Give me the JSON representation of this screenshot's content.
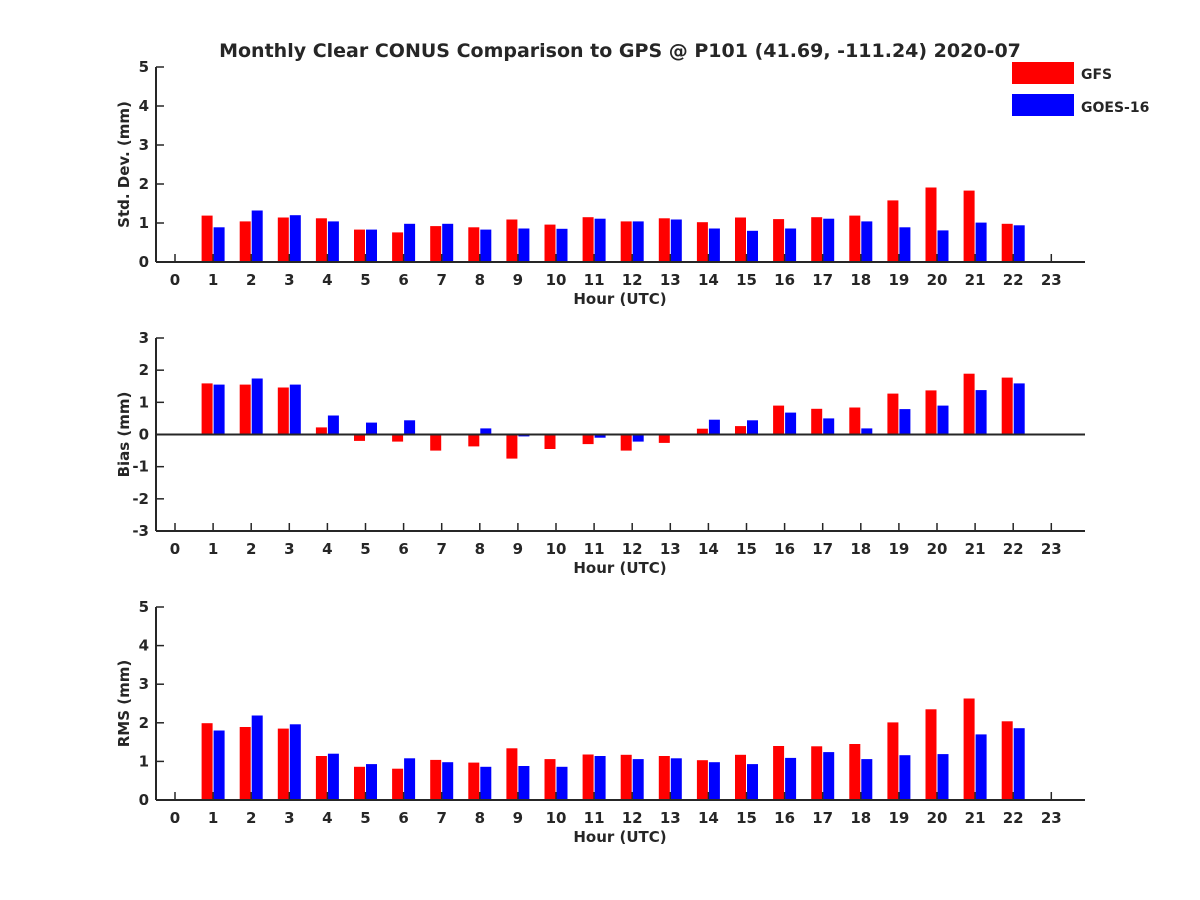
{
  "title": "Monthly Clear CONUS Comparison to GPS @ P101 (41.69, -111.24) 2020-07",
  "legend": [
    {
      "name": "GFS",
      "color": "#ff0000"
    },
    {
      "name": "GOES-16",
      "color": "#0000ff"
    }
  ],
  "chart_data": [
    {
      "type": "bar",
      "xlabel": "Hour (UTC)",
      "ylabel": "Std. Dev. (mm)",
      "ylim": [
        0,
        5
      ],
      "yticks": [
        "0",
        "1",
        "2",
        "3",
        "4",
        "5"
      ],
      "x": [
        0,
        1,
        2,
        3,
        4,
        5,
        6,
        7,
        8,
        9,
        10,
        11,
        12,
        13,
        14,
        15,
        16,
        17,
        18,
        19,
        20,
        21,
        22,
        23
      ],
      "xticks": [
        "0",
        "1",
        "2",
        "3",
        "4",
        "5",
        "6",
        "7",
        "8",
        "9",
        "10",
        "11",
        "12",
        "13",
        "14",
        "15",
        "16",
        "17",
        "18",
        "19",
        "20",
        "21",
        "22",
        "23"
      ],
      "series": [
        {
          "name": "GFS",
          "values": [
            null,
            1.19,
            1.04,
            1.14,
            1.12,
            0.83,
            0.76,
            0.92,
            0.89,
            1.09,
            0.96,
            1.15,
            1.04,
            1.12,
            1.02,
            1.14,
            1.1,
            1.15,
            1.19,
            1.58,
            1.91,
            1.83,
            0.98,
            null
          ]
        },
        {
          "name": "GOES-16",
          "values": [
            null,
            0.89,
            1.32,
            1.2,
            1.04,
            0.83,
            0.98,
            0.98,
            0.83,
            0.86,
            0.85,
            1.11,
            1.04,
            1.09,
            0.86,
            0.8,
            0.86,
            1.11,
            1.04,
            0.89,
            0.81,
            1.01,
            0.94,
            null
          ]
        }
      ]
    },
    {
      "type": "bar",
      "xlabel": "Hour (UTC)",
      "ylabel": "Bias (mm)",
      "ylim": [
        -3,
        3
      ],
      "yticks": [
        "-3",
        "-2",
        "-1",
        "0",
        "1",
        "2",
        "3"
      ],
      "x": [
        0,
        1,
        2,
        3,
        4,
        5,
        6,
        7,
        8,
        9,
        10,
        11,
        12,
        13,
        14,
        15,
        16,
        17,
        18,
        19,
        20,
        21,
        22,
        23
      ],
      "xticks": [
        "0",
        "1",
        "2",
        "3",
        "4",
        "5",
        "6",
        "7",
        "8",
        "9",
        "10",
        "11",
        "12",
        "13",
        "14",
        "15",
        "16",
        "17",
        "18",
        "19",
        "20",
        "21",
        "22",
        "23"
      ],
      "series": [
        {
          "name": "GFS",
          "values": [
            null,
            1.59,
            1.55,
            1.46,
            0.22,
            -0.2,
            -0.22,
            -0.5,
            -0.37,
            -0.75,
            -0.45,
            -0.3,
            -0.5,
            -0.26,
            0.18,
            0.26,
            0.9,
            0.8,
            0.84,
            1.27,
            1.37,
            1.89,
            1.77,
            null
          ]
        },
        {
          "name": "GOES-16",
          "values": [
            null,
            1.55,
            1.74,
            1.55,
            0.59,
            0.37,
            0.44,
            0.03,
            0.19,
            -0.06,
            0.0,
            -0.1,
            -0.22,
            0.0,
            0.46,
            0.44,
            0.68,
            0.5,
            0.19,
            0.79,
            0.9,
            1.38,
            1.59,
            null
          ]
        }
      ]
    },
    {
      "type": "bar",
      "xlabel": "Hour (UTC)",
      "ylabel": "RMS (mm)",
      "ylim": [
        0,
        5
      ],
      "yticks": [
        "0",
        "1",
        "2",
        "3",
        "4",
        "5"
      ],
      "x": [
        0,
        1,
        2,
        3,
        4,
        5,
        6,
        7,
        8,
        9,
        10,
        11,
        12,
        13,
        14,
        15,
        16,
        17,
        18,
        19,
        20,
        21,
        22,
        23
      ],
      "xticks": [
        "0",
        "1",
        "2",
        "3",
        "4",
        "5",
        "6",
        "7",
        "8",
        "9",
        "10",
        "11",
        "12",
        "13",
        "14",
        "15",
        "16",
        "17",
        "18",
        "19",
        "20",
        "21",
        "22",
        "23"
      ],
      "series": [
        {
          "name": "GFS",
          "values": [
            null,
            1.99,
            1.89,
            1.85,
            1.14,
            0.86,
            0.81,
            1.04,
            0.97,
            1.34,
            1.06,
            1.18,
            1.17,
            1.14,
            1.03,
            1.17,
            1.4,
            1.39,
            1.45,
            2.01,
            2.35,
            2.63,
            2.04,
            null
          ]
        },
        {
          "name": "GOES-16",
          "values": [
            null,
            1.8,
            2.19,
            1.96,
            1.2,
            0.93,
            1.08,
            0.98,
            0.86,
            0.88,
            0.86,
            1.14,
            1.06,
            1.08,
            0.98,
            0.93,
            1.09,
            1.24,
            1.06,
            1.16,
            1.19,
            1.7,
            1.86,
            null
          ]
        }
      ]
    }
  ]
}
